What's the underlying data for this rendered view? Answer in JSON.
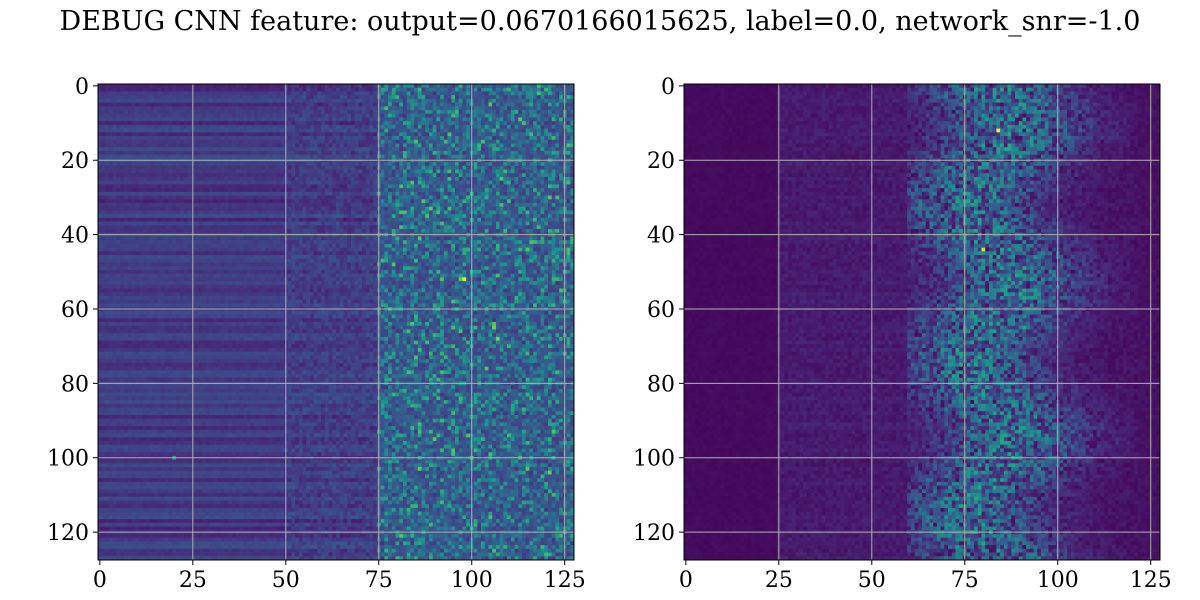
{
  "title": "DEBUG CNN feature: output=0.0670166015625, label=0.0, network_snr=-1.0",
  "chart_data": [
    {
      "type": "heatmap",
      "colormap": "viridis",
      "grid": true,
      "xlim": [
        0,
        127
      ],
      "ylim": [
        127,
        0
      ],
      "xticks": [
        "0",
        "25",
        "50",
        "75",
        "100",
        "125"
      ],
      "yticks": [
        "0",
        "20",
        "40",
        "60",
        "80",
        "100",
        "120"
      ],
      "rows": 128,
      "cols": 128,
      "description_levels": {
        "left_region_cols_0_50": 0.18,
        "mid_region_cols_50_75": 0.2,
        "right_region_cols_75_127": 0.28
      },
      "bright_spots": [
        {
          "row": 52,
          "col": 98,
          "value": 1.0
        },
        {
          "row": 65,
          "col": 106,
          "value": 0.8
        },
        {
          "row": 68,
          "col": 107,
          "value": 0.8
        },
        {
          "row": 103,
          "col": 86,
          "value": 0.75
        },
        {
          "row": 100,
          "col": 20,
          "value": 0.55
        }
      ]
    },
    {
      "type": "heatmap",
      "colormap": "viridis",
      "grid": true,
      "xlim": [
        0,
        127
      ],
      "ylim": [
        127,
        0
      ],
      "xticks": [
        "0",
        "25",
        "50",
        "75",
        "100",
        "125"
      ],
      "yticks": [
        "0",
        "20",
        "40",
        "60",
        "80",
        "100",
        "120"
      ],
      "rows": 128,
      "cols": 128,
      "description_levels": {
        "left_region_cols_0_25": 0.02,
        "mid_region_cols_25_60": 0.06,
        "band_cols_60_120": 0.22
      },
      "bright_spots": [
        {
          "row": 12,
          "col": 84,
          "value": 1.0
        },
        {
          "row": 44,
          "col": 80,
          "value": 0.95
        },
        {
          "row": 65,
          "col": 91,
          "value": 0.6
        },
        {
          "row": 77,
          "col": 74,
          "value": 0.55
        }
      ]
    }
  ]
}
